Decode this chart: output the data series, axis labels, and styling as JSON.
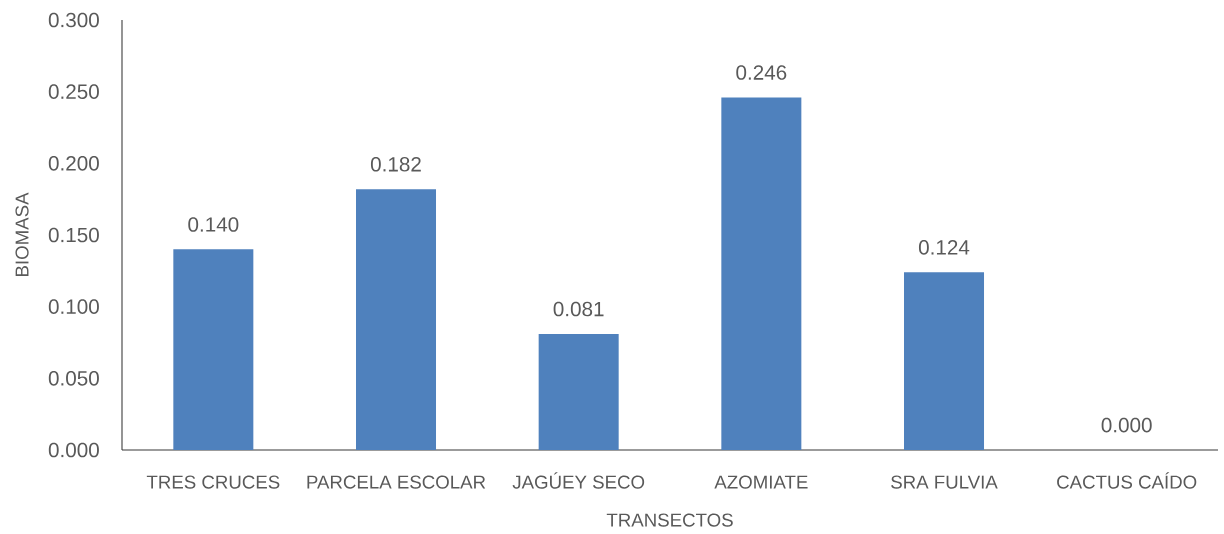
{
  "chart_data": {
    "type": "bar",
    "xlabel": "TRANSECTOS",
    "ylabel": "BIOMASA",
    "categories": [
      "TRES CRUCES",
      "PARCELA ESCOLAR",
      "JAGÚEY SECO",
      "AZOMIATE",
      "SRA FULVIA",
      "CACTUS CAÍDO"
    ],
    "values": [
      0.14,
      0.182,
      0.081,
      0.246,
      0.124,
      0.0
    ],
    "value_labels": [
      "0.140",
      "0.182",
      "0.081",
      "0.246",
      "0.124",
      "0.000"
    ],
    "color": "#4f81bd",
    "ylim": [
      0,
      0.3
    ],
    "yticks": [
      {
        "value": 0,
        "label": "0.000"
      },
      {
        "value": 0.05,
        "label": "0.050"
      },
      {
        "value": 0.1,
        "label": "0.100"
      },
      {
        "value": 0.15,
        "label": "0.150"
      },
      {
        "value": 0.2,
        "label": "0.200"
      },
      {
        "value": 0.25,
        "label": "0.250"
      },
      {
        "value": 0.3,
        "label": "0.300"
      }
    ]
  }
}
